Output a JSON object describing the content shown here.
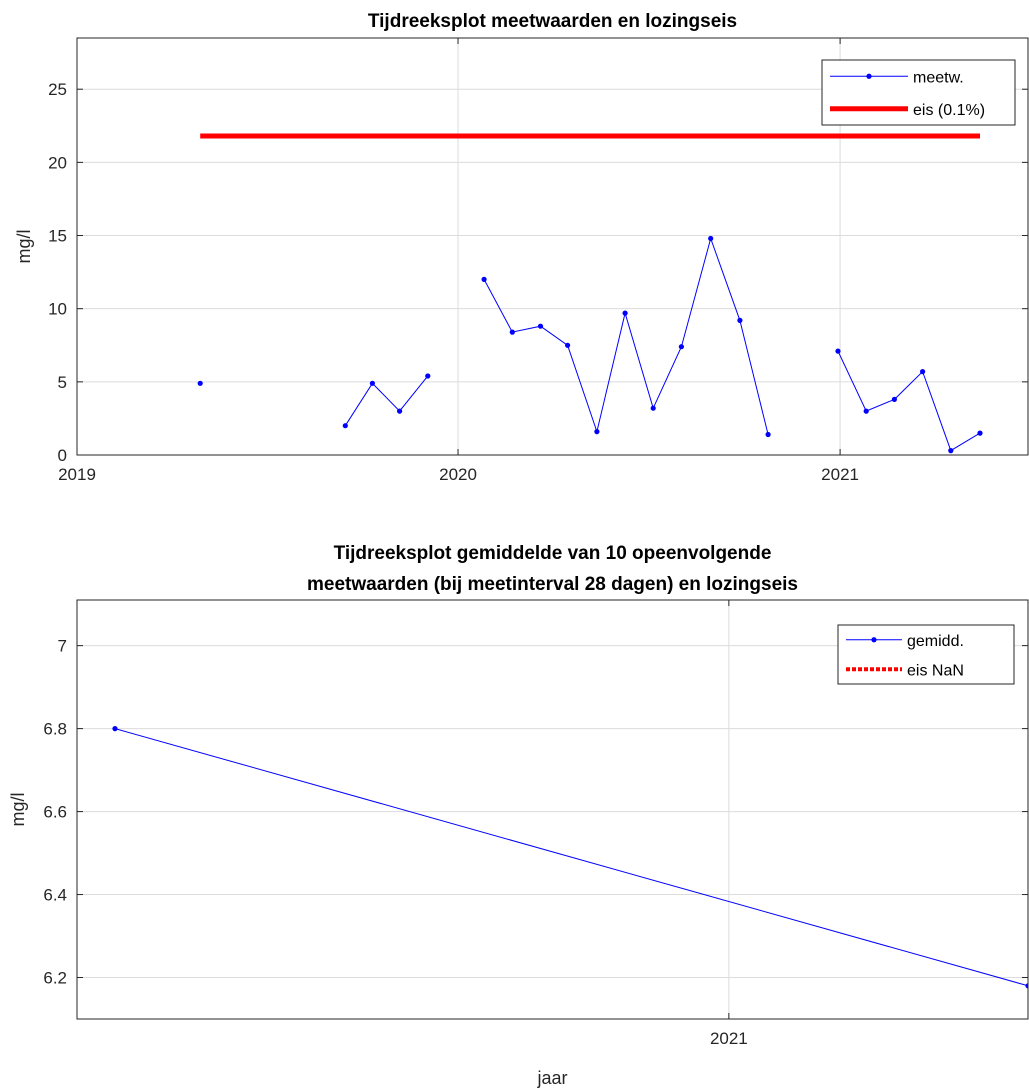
{
  "chart_data": [
    {
      "type": "line",
      "title": "Tijdreeksplot meetwaarden en lozingseis",
      "xlabel": "",
      "ylabel": "mg/l",
      "xlim": [
        "2019-01-01",
        "2021-06-30"
      ],
      "ylim": [
        0,
        28.5
      ],
      "xticks": [
        "2019-01-01",
        "2020-01-01",
        "2021-01-01"
      ],
      "xticklabels": [
        "2019",
        "2020",
        "2021"
      ],
      "yticks": [
        0,
        5,
        10,
        15,
        20,
        25
      ],
      "yticklabels": [
        "0",
        "5",
        "10",
        "15",
        "20",
        "25"
      ],
      "grid": true,
      "legend_position": "top-right",
      "colors": {
        "measured": "#0000ff",
        "limit": "#ff0000"
      },
      "series": [
        {
          "name": "meetw.",
          "segments": [
            [
              {
                "x": "2019-04-29",
                "y": 4.9
              }
            ],
            [
              {
                "x": "2019-09-15",
                "y": 2.0
              },
              {
                "x": "2019-10-11",
                "y": 4.9
              },
              {
                "x": "2019-11-06",
                "y": 3.0
              },
              {
                "x": "2019-12-03",
                "y": 5.4
              }
            ],
            [
              {
                "x": "2020-01-26",
                "y": 12.0
              },
              {
                "x": "2020-02-22",
                "y": 8.4
              },
              {
                "x": "2020-03-20",
                "y": 8.8
              },
              {
                "x": "2020-04-15",
                "y": 7.5
              },
              {
                "x": "2020-05-13",
                "y": 1.6
              },
              {
                "x": "2020-06-09",
                "y": 9.7
              },
              {
                "x": "2020-07-06",
                "y": 3.2
              },
              {
                "x": "2020-08-02",
                "y": 7.4
              },
              {
                "x": "2020-08-30",
                "y": 14.8
              },
              {
                "x": "2020-09-27",
                "y": 9.2
              },
              {
                "x": "2020-10-24",
                "y": 1.4
              }
            ],
            [
              {
                "x": "2020-12-30",
                "y": 7.1
              },
              {
                "x": "2021-01-26",
                "y": 3.0
              },
              {
                "x": "2021-02-22",
                "y": 3.8
              },
              {
                "x": "2021-03-21",
                "y": 5.7
              },
              {
                "x": "2021-04-17",
                "y": 0.3
              },
              {
                "x": "2021-05-15",
                "y": 1.5
              }
            ]
          ]
        },
        {
          "name": "eis (0.1%)",
          "style": "thick",
          "segments": [
            [
              {
                "x": "2019-04-29",
                "y": 21.8
              },
              {
                "x": "2021-05-15",
                "y": 21.8
              }
            ]
          ]
        }
      ]
    },
    {
      "type": "line",
      "title": "Tijdreeksplot gemiddelde van 10 opeenvolgende meetwaarden (bij meetinterval 28 dagen) en lozingseis",
      "title_lines": [
        "Tijdreeksplot gemiddelde van 10 opeenvolgende",
        "meetwaarden (bij meetinterval 28 dagen) en lozingseis"
      ],
      "xlabel": "jaar",
      "ylabel": "mg/l",
      "xlim": [
        "2020-03-15",
        "2021-05-15"
      ],
      "ylim": [
        6.1,
        7.11
      ],
      "xticks": [
        "2021-01-01"
      ],
      "xticklabels": [
        "2021"
      ],
      "yticks": [
        6.2,
        6.4,
        6.6,
        6.8,
        7.0
      ],
      "yticklabels": [
        "6.2",
        "6.4",
        "6.6",
        "6.8",
        "7"
      ],
      "grid": true,
      "legend_position": "top-right",
      "colors": {
        "measured": "#0000ff",
        "limit": "#ff0000"
      },
      "series": [
        {
          "name": "gemidd.",
          "segments": [
            [
              {
                "x": "2020-04-01",
                "y": 6.8
              },
              {
                "x": "2021-05-15",
                "y": 6.18
              }
            ]
          ]
        },
        {
          "name": "eis NaN",
          "style": "dotted",
          "segments": []
        }
      ]
    }
  ]
}
